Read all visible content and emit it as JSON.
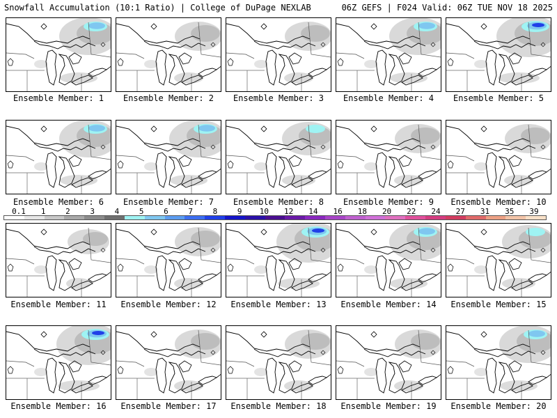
{
  "header": {
    "left": "Snowfall Accumulation (10:1 Ratio) | College of DuPage NEXLAB",
    "right": "06Z GEFS | F024 Valid: 06Z TUE NOV 18 2025"
  },
  "scale": {
    "ticks": [
      "0.1",
      "1",
      "2",
      "3",
      "4",
      "5",
      "6",
      "7",
      "8",
      "9",
      "10",
      "12",
      "14",
      "16",
      "18",
      "20",
      "22",
      "24",
      "27",
      "31",
      "35",
      "39"
    ],
    "colors": [
      "#ffffff",
      "#e6e6e6",
      "#c8c8c8",
      "#a9a9a9",
      "#8c8c8c",
      "#6f6f6f",
      "#9ff3f3",
      "#7fc7f0",
      "#5b9cf0",
      "#3c6ef0",
      "#2040e8",
      "#1414c8",
      "#2a10a8",
      "#4a0e90",
      "#6a1aa8",
      "#8a28c0",
      "#a844c8",
      "#c060d0",
      "#d070d8",
      "#e070c0",
      "#e0509c",
      "#d43c80",
      "#d23c60",
      "#e06a6a",
      "#eca084",
      "#f2c4a8",
      "#f8e0c8"
    ]
  },
  "panels": [
    {
      "label": "Ensemble Member: 1",
      "member": 1,
      "snow": 3
    },
    {
      "label": "Ensemble Member: 2",
      "member": 2,
      "snow": 1
    },
    {
      "label": "Ensemble Member: 3",
      "member": 3,
      "snow": 1
    },
    {
      "label": "Ensemble Member: 4",
      "member": 4,
      "snow": 3
    },
    {
      "label": "Ensemble Member: 5",
      "member": 5,
      "snow": 4
    },
    {
      "label": "Ensemble Member: 6",
      "member": 6,
      "snow": 3
    },
    {
      "label": "Ensemble Member: 7",
      "member": 7,
      "snow": 3
    },
    {
      "label": "Ensemble Member: 8",
      "member": 8,
      "snow": 2
    },
    {
      "label": "Ensemble Member: 9",
      "member": 9,
      "snow": 1
    },
    {
      "label": "Ensemble Member: 10",
      "member": 10,
      "snow": 1
    },
    {
      "label": "Ensemble Member: 11",
      "member": 11,
      "snow": 0
    },
    {
      "label": "Ensemble Member: 12",
      "member": 12,
      "snow": 1
    },
    {
      "label": "Ensemble Member: 13",
      "member": 13,
      "snow": 4
    },
    {
      "label": "Ensemble Member: 14",
      "member": 14,
      "snow": 3
    },
    {
      "label": "Ensemble Member: 15",
      "member": 15,
      "snow": 2
    },
    {
      "label": "Ensemble Member: 16",
      "member": 16,
      "snow": 4
    },
    {
      "label": "Ensemble Member: 17",
      "member": 17,
      "snow": 1
    },
    {
      "label": "Ensemble Member: 18",
      "member": 18,
      "snow": 1
    },
    {
      "label": "Ensemble Member: 19",
      "member": 19,
      "snow": 1
    },
    {
      "label": "Ensemble Member: 20",
      "member": 20,
      "snow": 3
    }
  ]
}
